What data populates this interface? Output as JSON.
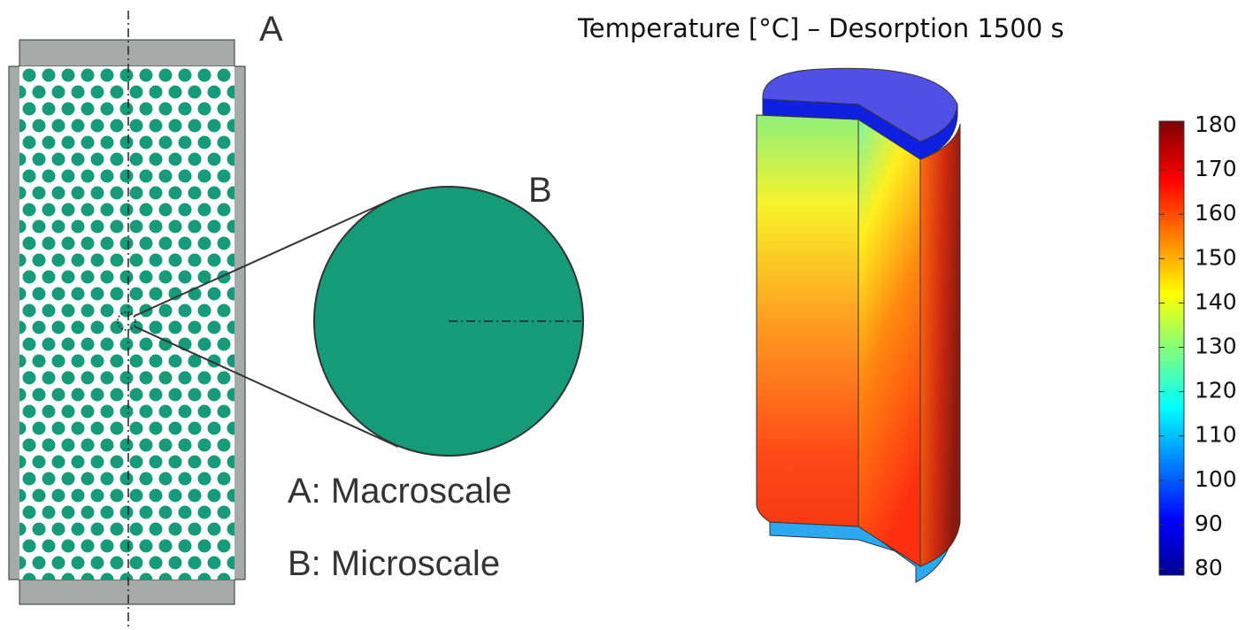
{
  "diagram": {
    "label_a": "A",
    "label_b": "B",
    "legend_a": "A: Macroscale",
    "legend_b": "B: Microscale"
  },
  "simulation": {
    "title": "Temperature [°C] – Desorption 1500 s",
    "colorbar": {
      "range": [
        80,
        180
      ],
      "ticks": [
        80,
        90,
        100,
        110,
        120,
        130,
        140,
        150,
        160,
        170,
        180
      ]
    }
  }
}
